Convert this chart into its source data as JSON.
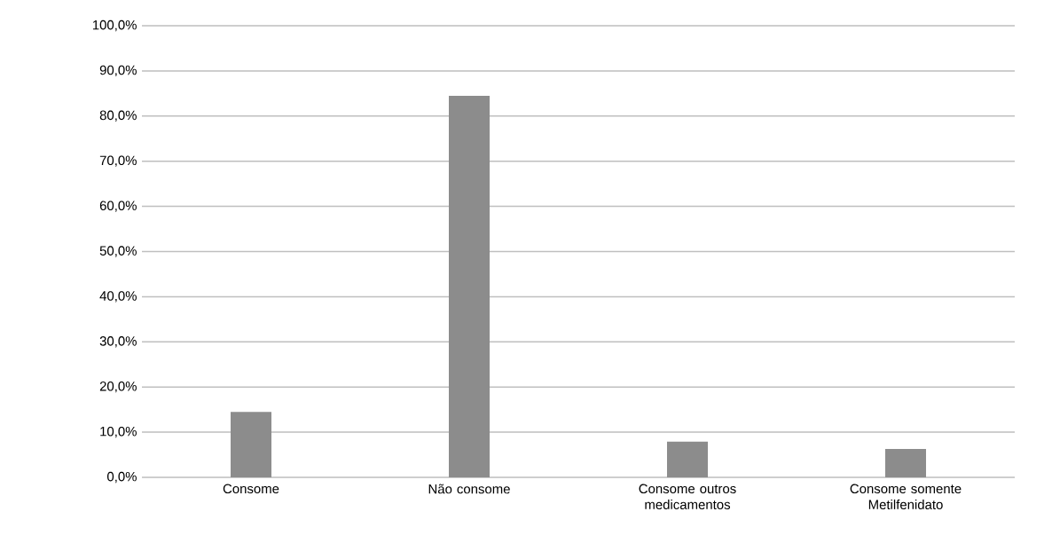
{
  "chart_data": {
    "type": "bar",
    "categories": [
      "Consome",
      "Não consome",
      "Consome outros medicamentos",
      "Consome somente Metilfenidato"
    ],
    "values": [
      14.5,
      84.5,
      7.9,
      6.3
    ],
    "color": "#8c8c8c",
    "ylim": [
      0,
      100
    ],
    "yticks": [
      {
        "value": 0,
        "label": "0,0%"
      },
      {
        "value": 10,
        "label": "10,0%"
      },
      {
        "value": 20,
        "label": "20,0%"
      },
      {
        "value": 30,
        "label": "30,0%"
      },
      {
        "value": 40,
        "label": "40,0%"
      },
      {
        "value": 50,
        "label": "50,0%"
      },
      {
        "value": 60,
        "label": "60,0%"
      },
      {
        "value": 70,
        "label": "70,0%"
      },
      {
        "value": 80,
        "label": "80,0%"
      },
      {
        "value": 90,
        "label": "90,0%"
      },
      {
        "value": 100,
        "label": "100,0%"
      }
    ],
    "grid": "y"
  }
}
